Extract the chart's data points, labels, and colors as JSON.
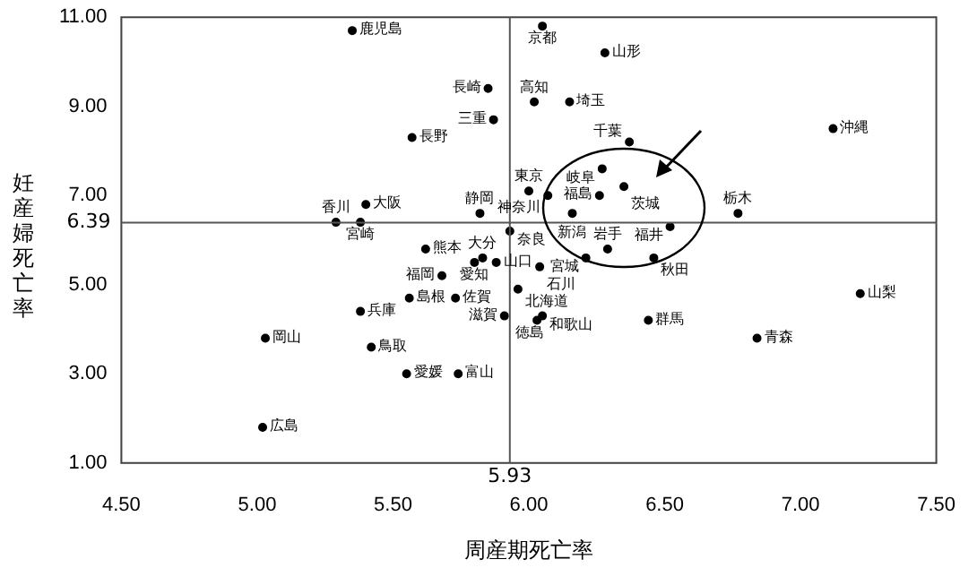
{
  "chart_data": {
    "type": "scatter",
    "xlabel": "周産期死亡率",
    "ylabel": "妊産婦死亡率",
    "xlim": [
      4.5,
      7.5
    ],
    "ylim": [
      1,
      11
    ],
    "xticks": [
      {
        "value": 4.5,
        "label": "4.50"
      },
      {
        "value": 5,
        "label": "5.00"
      },
      {
        "value": 5.5,
        "label": "5.50"
      },
      {
        "value": 6,
        "label": "6.00"
      },
      {
        "value": 6.5,
        "label": "6.50"
      },
      {
        "value": 7,
        "label": "7.00"
      },
      {
        "value": 7.5,
        "label": "7.50"
      }
    ],
    "yticks": [
      {
        "value": 1,
        "label": "1.00"
      },
      {
        "value": 3,
        "label": "3.00"
      },
      {
        "value": 5,
        "label": "5.00"
      },
      {
        "value": 7,
        "label": "7.00"
      },
      {
        "value": 9,
        "label": "9.00"
      },
      {
        "value": 11,
        "label": "11.00"
      }
    ],
    "ref_lines": [
      {
        "axis": "x",
        "value": 5.93,
        "label": "5.93",
        "color": "#555555"
      },
      {
        "axis": "y",
        "value": 6.39,
        "label": "6.39",
        "color": "#555555"
      }
    ],
    "grid": false,
    "legend": false,
    "marker": "circle",
    "series": [
      {
        "name": "鹿児島",
        "color": "#000000",
        "x": [
          5.35
        ],
        "values": [
          10.7
        ]
      },
      {
        "name": "長崎",
        "color": "#000000",
        "x": [
          5.85
        ],
        "values": [
          9.4
        ]
      },
      {
        "name": "三重",
        "color": "#000000",
        "x": [
          5.87
        ],
        "values": [
          8.7
        ]
      },
      {
        "name": "長野",
        "color": "#000000",
        "x": [
          5.57
        ],
        "values": [
          8.3
        ]
      },
      {
        "name": "高知",
        "color": "#000000",
        "x": [
          6.02
        ],
        "values": [
          9.1
        ]
      },
      {
        "name": "東京",
        "color": "#000000",
        "x": [
          6.0
        ],
        "values": [
          7.1
        ]
      },
      {
        "name": "大阪",
        "color": "#000000",
        "x": [
          5.4
        ],
        "values": [
          6.8
        ]
      },
      {
        "name": "静岡",
        "color": "#000000",
        "x": [
          5.82
        ],
        "values": [
          6.6
        ]
      },
      {
        "name": "香川",
        "color": "#000000",
        "x": [
          5.29
        ],
        "values": [
          6.4
        ]
      },
      {
        "name": "宮崎",
        "color": "#000000",
        "x": [
          5.38
        ],
        "values": [
          6.4
        ]
      },
      {
        "name": "奈良",
        "color": "#000000",
        "x": [
          5.93
        ],
        "values": [
          6.2
        ]
      },
      {
        "name": "熊本",
        "color": "#000000",
        "x": [
          5.62
        ],
        "values": [
          5.8
        ]
      },
      {
        "name": "愛知",
        "color": "#000000",
        "x": [
          5.8
        ],
        "values": [
          5.5
        ]
      },
      {
        "name": "大分",
        "color": "#000000",
        "x": [
          5.83
        ],
        "values": [
          5.6
        ]
      },
      {
        "name": "山口",
        "color": "#000000",
        "x": [
          5.88
        ],
        "values": [
          5.5
        ]
      },
      {
        "name": "福岡",
        "color": "#000000",
        "x": [
          5.68
        ],
        "values": [
          5.2
        ]
      },
      {
        "name": "島根",
        "color": "#000000",
        "x": [
          5.56
        ],
        "values": [
          4.7
        ]
      },
      {
        "name": "佐賀",
        "color": "#000000",
        "x": [
          5.73
        ],
        "values": [
          4.7
        ]
      },
      {
        "name": "兵庫",
        "color": "#000000",
        "x": [
          5.38
        ],
        "values": [
          4.4
        ]
      },
      {
        "name": "滋賀",
        "color": "#000000",
        "x": [
          5.91
        ],
        "values": [
          4.3
        ]
      },
      {
        "name": "岡山",
        "color": "#000000",
        "x": [
          5.03
        ],
        "values": [
          3.8
        ]
      },
      {
        "name": "鳥取",
        "color": "#000000",
        "x": [
          5.42
        ],
        "values": [
          3.6
        ]
      },
      {
        "name": "愛媛",
        "color": "#000000",
        "x": [
          5.55
        ],
        "values": [
          3.0
        ]
      },
      {
        "name": "富山",
        "color": "#000000",
        "x": [
          5.74
        ],
        "values": [
          3.0
        ]
      },
      {
        "name": "広島",
        "color": "#000000",
        "x": [
          5.02
        ],
        "values": [
          1.8
        ]
      },
      {
        "name": "京都",
        "color": "#000000",
        "x": [
          6.05
        ],
        "values": [
          10.8
        ]
      },
      {
        "name": "山形",
        "color": "#000000",
        "x": [
          6.28
        ],
        "values": [
          10.2
        ]
      },
      {
        "name": "埼玉",
        "color": "#000000",
        "x": [
          6.15
        ],
        "values": [
          9.1
        ]
      },
      {
        "name": "沖縄",
        "color": "#000000",
        "x": [
          7.12
        ],
        "values": [
          8.5
        ]
      },
      {
        "name": "千葉",
        "color": "#000000",
        "x": [
          6.37
        ],
        "values": [
          8.2
        ]
      },
      {
        "name": "岐阜",
        "color": "#000000",
        "x": [
          6.27
        ],
        "values": [
          7.6
        ]
      },
      {
        "name": "茨城",
        "color": "#000000",
        "x": [
          6.35
        ],
        "values": [
          7.2
        ]
      },
      {
        "name": "神奈川",
        "color": "#000000",
        "x": [
          6.07
        ],
        "values": [
          7.0
        ]
      },
      {
        "name": "福島",
        "color": "#000000",
        "x": [
          6.26
        ],
        "values": [
          7.0
        ]
      },
      {
        "name": "新潟",
        "color": "#000000",
        "x": [
          6.16
        ],
        "values": [
          6.6
        ]
      },
      {
        "name": "栃木",
        "color": "#000000",
        "x": [
          6.77
        ],
        "values": [
          6.6
        ]
      },
      {
        "name": "福井",
        "color": "#000000",
        "x": [
          6.52
        ],
        "values": [
          6.3
        ]
      },
      {
        "name": "岩手",
        "color": "#000000",
        "x": [
          6.29
        ],
        "values": [
          5.8
        ]
      },
      {
        "name": "宮城",
        "color": "#000000",
        "x": [
          6.21
        ],
        "values": [
          5.6
        ]
      },
      {
        "name": "秋田",
        "color": "#000000",
        "x": [
          6.46
        ],
        "values": [
          5.6
        ]
      },
      {
        "name": "石川",
        "color": "#000000",
        "x": [
          6.04
        ],
        "values": [
          5.4
        ]
      },
      {
        "name": "北海道",
        "color": "#000000",
        "x": [
          5.96
        ],
        "values": [
          4.9
        ]
      },
      {
        "name": "山梨",
        "color": "#000000",
        "x": [
          7.22
        ],
        "values": [
          4.8
        ]
      },
      {
        "name": "和歌山",
        "color": "#000000",
        "x": [
          6.05
        ],
        "values": [
          4.3
        ]
      },
      {
        "name": "群馬",
        "color": "#000000",
        "x": [
          6.44
        ],
        "values": [
          4.2
        ]
      },
      {
        "name": "徳島",
        "color": "#000000",
        "x": [
          6.03
        ],
        "values": [
          4.2
        ]
      },
      {
        "name": "青森",
        "color": "#000000",
        "x": [
          6.84
        ],
        "values": [
          3.8
        ]
      }
    ]
  }
}
